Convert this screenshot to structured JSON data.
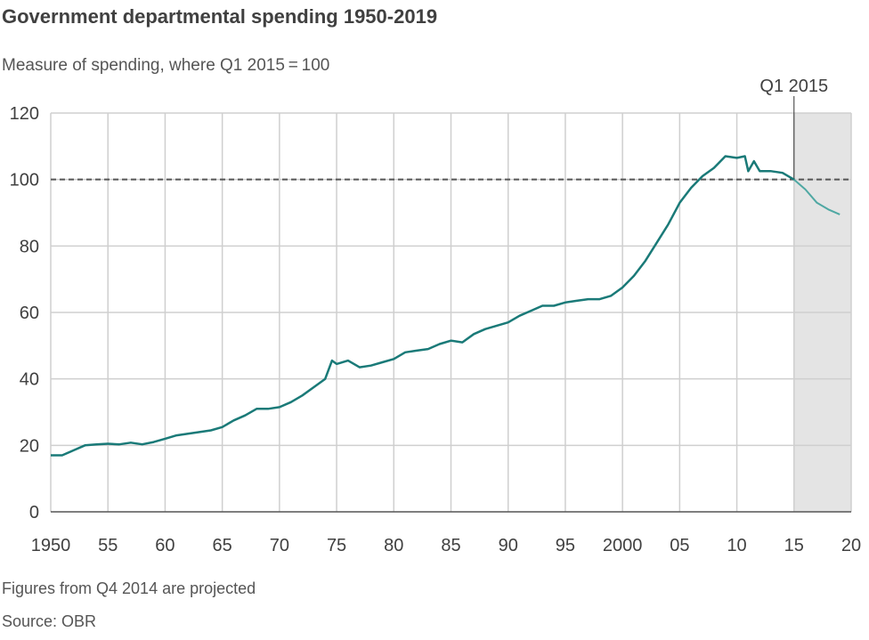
{
  "title": "Government departmental spending 1950-2019",
  "subtitle": "Measure of spending, where Q1 2015 = 100",
  "note": "Figures from Q4 2014 are projected",
  "source": "Source: OBR",
  "chart_data": {
    "type": "line",
    "title": "Government departmental spending 1950-2019",
    "ylabel": "",
    "xlabel": "",
    "xlim": [
      1950,
      2020
    ],
    "ylim": [
      0,
      120
    ],
    "grid": true,
    "x_ticks": [
      1950,
      1955,
      1960,
      1965,
      1970,
      1975,
      1980,
      1985,
      1990,
      1995,
      2000,
      2005,
      2010,
      2015,
      2020
    ],
    "x_tick_labels": [
      "1950",
      "55",
      "60",
      "65",
      "70",
      "75",
      "80",
      "85",
      "90",
      "95",
      "2000",
      "05",
      "10",
      "15",
      "20"
    ],
    "y_ticks": [
      0,
      20,
      40,
      60,
      80,
      100,
      120
    ],
    "y_tick_labels": [
      "0",
      "20",
      "40",
      "60",
      "80",
      "100",
      "120"
    ],
    "reference_line": {
      "y": 100,
      "style": "dashed"
    },
    "marker": {
      "x": 2015,
      "label": "Q1 2015"
    },
    "projected_region": {
      "from": 2015,
      "to": 2020,
      "color": "#e4e4e4"
    },
    "colors": {
      "actual": "#1a7a78",
      "projected": "#4fa8a3",
      "reference": "#555555"
    },
    "series": [
      {
        "type": "actual",
        "x": [
          1950,
          1951,
          1952,
          1953,
          1954,
          1955,
          1956,
          1957,
          1958,
          1959,
          1960,
          1961,
          1962,
          1963,
          1964,
          1965,
          1966,
          1967,
          1968,
          1969,
          1970,
          1971,
          1972,
          1973,
          1974,
          1974.6,
          1975,
          1976,
          1977,
          1978,
          1979,
          1980,
          1981,
          1982,
          1983,
          1984,
          1985,
          1986,
          1987,
          1988,
          1989,
          1990,
          1991,
          1992,
          1993,
          1994,
          1995,
          1996,
          1997,
          1998,
          1999,
          2000,
          2001,
          2002,
          2003,
          2004,
          2005,
          2006,
          2007,
          2008,
          2009,
          2010,
          2010.7,
          2011,
          2011.5,
          2012,
          2013,
          2014,
          2015
        ],
        "y": [
          17,
          17,
          18.5,
          20,
          20.3,
          20.5,
          20.3,
          20.8,
          20.3,
          21,
          22,
          23,
          23.5,
          24,
          24.5,
          25.5,
          27.5,
          29,
          31,
          31,
          31.5,
          33,
          35,
          37.5,
          40,
          45.5,
          44.5,
          45.5,
          43.5,
          44,
          45,
          46,
          48,
          48.5,
          49,
          50.5,
          51.5,
          51,
          53.5,
          55,
          56,
          57,
          59,
          60.5,
          62,
          62,
          63,
          63.5,
          64,
          64,
          65,
          67.5,
          71,
          75.5,
          81,
          86.5,
          93,
          97.5,
          101,
          103.5,
          107,
          106.5,
          107,
          102.5,
          105.5,
          102.5,
          102.5,
          102,
          100
        ]
      },
      {
        "type": "projected",
        "x": [
          2015,
          2016,
          2017,
          2018,
          2019
        ],
        "y": [
          100,
          97,
          93,
          91,
          89.5
        ]
      }
    ]
  }
}
